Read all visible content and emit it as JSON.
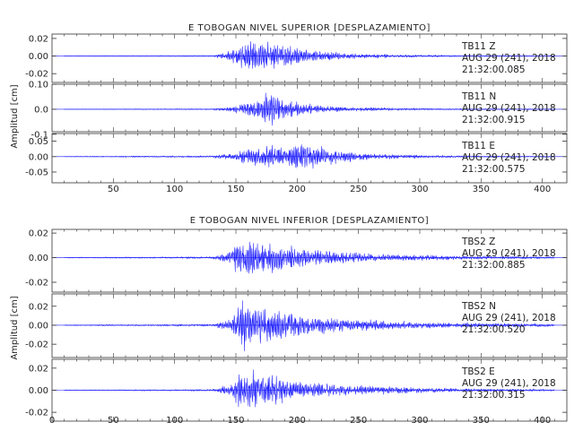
{
  "trace_color": "#1a1aff",
  "chart_data": [
    {
      "type": "line",
      "title": "E TOBOGAN NIVEL SUPERIOR [DESPLAZAMIENTO]",
      "ylabel": "Amplitud [cm]",
      "xlabel": "",
      "xlim": [
        0,
        420
      ],
      "xticks": [
        50,
        100,
        150,
        200,
        250,
        300,
        350,
        400
      ],
      "grid": false,
      "panels": [
        {
          "station": "TB11",
          "component": "Z",
          "date": "AUG 29 (241), 2018",
          "time": "21:32:00.085",
          "ylim": [
            -0.03,
            0.025
          ],
          "yticks": [
            {
              "v": 0.02,
              "label": "0.02"
            },
            {
              "v": 0.0,
              "label": "0.00"
            },
            {
              "v": -0.02,
              "label": "-0.02"
            }
          ],
          "envelope": [
            [
              0,
              0.0004
            ],
            [
              130,
              0.0008
            ],
            [
              140,
              0.004
            ],
            [
              150,
              0.012
            ],
            [
              160,
              0.02
            ],
            [
              175,
              0.022
            ],
            [
              190,
              0.015
            ],
            [
              210,
              0.008
            ],
            [
              240,
              0.004
            ],
            [
              280,
              0.002
            ],
            [
              330,
              0.001
            ],
            [
              410,
              0.0005
            ]
          ]
        },
        {
          "station": "TB11",
          "component": "N",
          "date": "AUG 29 (241), 2018",
          "time": "21:32:00.915",
          "ylim": [
            -0.09,
            0.1
          ],
          "yticks": [
            {
              "v": 0.1,
              "label": "0.10"
            },
            {
              "v": 0.0,
              "label": "0.0"
            },
            {
              "v": -0.1,
              "label": "-0.1"
            }
          ],
          "envelope": [
            [
              0,
              0.001
            ],
            [
              130,
              0.003
            ],
            [
              145,
              0.012
            ],
            [
              160,
              0.03
            ],
            [
              170,
              0.06
            ],
            [
              178,
              0.085
            ],
            [
              190,
              0.045
            ],
            [
              210,
              0.025
            ],
            [
              240,
              0.012
            ],
            [
              280,
              0.006
            ],
            [
              330,
              0.003
            ],
            [
              410,
              0.002
            ]
          ]
        },
        {
          "station": "TB11",
          "component": "E",
          "date": "AUG 29 (241), 2018",
          "time": "21:32:00.575",
          "ylim": [
            -0.085,
            0.075
          ],
          "yticks": [
            {
              "v": 0.05,
              "label": "0.05"
            },
            {
              "v": 0.0,
              "label": "0.00"
            },
            {
              "v": -0.05,
              "label": "-0.05"
            }
          ],
          "envelope": [
            [
              0,
              0.001
            ],
            [
              130,
              0.004
            ],
            [
              145,
              0.012
            ],
            [
              160,
              0.03
            ],
            [
              175,
              0.045
            ],
            [
              190,
              0.035
            ],
            [
              200,
              0.06
            ],
            [
              212,
              0.05
            ],
            [
              230,
              0.025
            ],
            [
              260,
              0.012
            ],
            [
              300,
              0.006
            ],
            [
              350,
              0.003
            ],
            [
              410,
              0.002
            ]
          ]
        }
      ]
    },
    {
      "type": "line",
      "title": "E TOBOGAN NIVEL INFERIOR [DESPLAZAMIENTO]",
      "ylabel": "Amplitud [cm]",
      "xlabel": "",
      "xlim": [
        0,
        420
      ],
      "xticks": [
        0,
        50,
        100,
        150,
        200,
        250,
        300,
        350,
        400
      ],
      "grid": false,
      "panels": [
        {
          "station": "TBS2",
          "component": "Z",
          "date": "AUG 29 (241), 2018",
          "time": "21:32:00.885",
          "ylim": [
            -0.028,
            0.023
          ],
          "yticks": [
            {
              "v": 0.02,
              "label": "0.02"
            },
            {
              "v": 0.0,
              "label": "0.00"
            },
            {
              "v": -0.02,
              "label": "-0.02"
            }
          ],
          "envelope": [
            [
              0,
              0.0004
            ],
            [
              130,
              0.001
            ],
            [
              145,
              0.006
            ],
            [
              155,
              0.022
            ],
            [
              165,
              0.018
            ],
            [
              185,
              0.014
            ],
            [
              210,
              0.008
            ],
            [
              240,
              0.005
            ],
            [
              280,
              0.003
            ],
            [
              330,
              0.002
            ],
            [
              410,
              0.001
            ]
          ]
        },
        {
          "station": "TBS2",
          "component": "N",
          "date": "AUG 29 (241), 2018",
          "time": "21:32:00.520",
          "ylim": [
            -0.034,
            0.033
          ],
          "yticks": [
            {
              "v": 0.02,
              "label": "0.02"
            },
            {
              "v": 0.0,
              "label": "0.00"
            },
            {
              "v": -0.02,
              "label": "-0.02"
            }
          ],
          "envelope": [
            [
              0,
              0.0005
            ],
            [
              130,
              0.0015
            ],
            [
              145,
              0.008
            ],
            [
              155,
              0.03
            ],
            [
              165,
              0.026
            ],
            [
              185,
              0.018
            ],
            [
              210,
              0.012
            ],
            [
              240,
              0.008
            ],
            [
              280,
              0.005
            ],
            [
              330,
              0.003
            ],
            [
              410,
              0.002
            ]
          ]
        },
        {
          "station": "TBS2",
          "component": "E",
          "date": "AUG 29 (241), 2018",
          "time": "21:32:00.315",
          "ylim": [
            -0.028,
            0.028
          ],
          "yticks": [
            {
              "v": 0.02,
              "label": "0.02"
            },
            {
              "v": 0.0,
              "label": "0.00"
            },
            {
              "v": -0.02,
              "label": "-0.02"
            }
          ],
          "envelope": [
            [
              0,
              0.0004
            ],
            [
              130,
              0.001
            ],
            [
              145,
              0.006
            ],
            [
              155,
              0.024
            ],
            [
              165,
              0.02
            ],
            [
              185,
              0.014
            ],
            [
              210,
              0.009
            ],
            [
              240,
              0.006
            ],
            [
              280,
              0.004
            ],
            [
              330,
              0.002
            ],
            [
              410,
              0.001
            ]
          ]
        }
      ]
    }
  ]
}
